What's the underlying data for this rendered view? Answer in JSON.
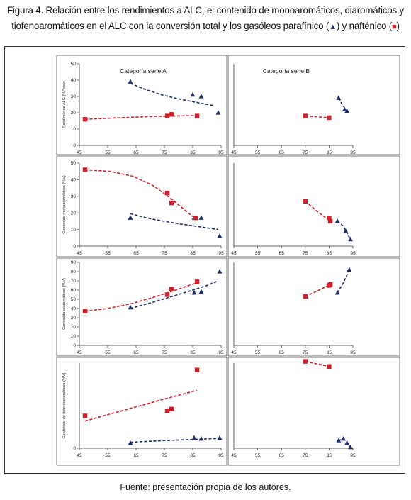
{
  "figure": {
    "title_line1": "Figura 4. Relación entre los rendimientos a ALC, el contenido de monoaromáticos, diaromáticos y",
    "title_line2_a": "tiofenoaromáticos en el ALC con la conversión total y los gasóleos parafínico (",
    "title_line2_b": ") y nafténico (",
    "title_line2_c": ")",
    "source": "Fuente: presentación propia de los autores."
  },
  "colors": {
    "parafinico": "#1f2f6e",
    "naftenico": "#d0202a"
  },
  "chart_data": [
    {
      "type": "scatter",
      "row": 0,
      "panel": "A",
      "title": "Categoría serie A",
      "ylabel": "Rendimiento ALC (%Peso)",
      "xlim": [
        45,
        95
      ],
      "ylim": [
        0,
        50
      ],
      "xticks": [
        45,
        55,
        65,
        75,
        85,
        95
      ],
      "yticks": [
        0,
        10,
        20,
        30,
        40,
        50
      ],
      "series": [
        {
          "marker": "triangle",
          "color": "#1f2f6e",
          "points": [
            [
              63,
              39
            ],
            [
              85,
              31
            ],
            [
              88,
              30
            ],
            [
              94,
              20
            ]
          ],
          "trend": [
            [
              63,
              38
            ],
            [
              68,
              34.5
            ],
            [
              74,
              31
            ],
            [
              80,
              28.5
            ],
            [
              86,
              26.5
            ],
            [
              92,
              24.5
            ]
          ]
        },
        {
          "marker": "square",
          "color": "#d0202a",
          "points": [
            [
              47,
              16
            ],
            [
              76,
              18
            ],
            [
              77.5,
              19
            ],
            [
              86.5,
              18
            ]
          ],
          "trend": [
            [
              47,
              16
            ],
            [
              60,
              17
            ],
            [
              72,
              17.8
            ],
            [
              86.5,
              18.3
            ]
          ]
        }
      ]
    },
    {
      "type": "scatter",
      "row": 0,
      "panel": "B",
      "title": "Categoría serie B",
      "ylabel": "",
      "xlim": [
        45,
        95
      ],
      "ylim": [
        0,
        50
      ],
      "xticks": [
        45,
        55,
        65,
        75,
        85,
        95
      ],
      "yticks": [],
      "series": [
        {
          "marker": "triangle",
          "color": "#1f2f6e",
          "points": [
            [
              89,
              29
            ],
            [
              91.5,
              22
            ],
            [
              92.5,
              21
            ]
          ],
          "trend": [
            [
              89,
              29
            ],
            [
              90.5,
              25
            ],
            [
              92.5,
              21
            ]
          ]
        },
        {
          "marker": "square",
          "color": "#d0202a",
          "points": [
            [
              75,
              18
            ],
            [
              85,
              17
            ]
          ],
          "trend": [
            [
              75,
              18
            ],
            [
              85,
              17
            ]
          ]
        }
      ]
    },
    {
      "type": "scatter",
      "row": 1,
      "panel": "A",
      "title": "",
      "ylabel": "Contenido monoaromáticos (%V)",
      "xlim": [
        45,
        95
      ],
      "ylim": [
        0,
        50
      ],
      "xticks": [
        45,
        55,
        65,
        75,
        85,
        95
      ],
      "yticks": [
        0,
        10,
        20,
        30,
        40,
        50
      ],
      "series": [
        {
          "marker": "triangle",
          "color": "#1f2f6e",
          "points": [
            [
              63,
              17
            ],
            [
              85.5,
              17
            ],
            [
              88,
              17
            ],
            [
              94.5,
              6
            ]
          ],
          "trend": [
            [
              63,
              19.5
            ],
            [
              70,
              16.5
            ],
            [
              78,
              14
            ],
            [
              86,
              12
            ],
            [
              94,
              10
            ]
          ]
        },
        {
          "marker": "square",
          "color": "#d0202a",
          "points": [
            [
              47,
              46
            ],
            [
              76,
              32
            ],
            [
              77.5,
              26
            ],
            [
              86,
              17
            ]
          ],
          "trend": [
            [
              47,
              46
            ],
            [
              56,
              45
            ],
            [
              64,
              42
            ],
            [
              71,
              36.5
            ],
            [
              77,
              29
            ],
            [
              82,
              22
            ],
            [
              86,
              16.5
            ]
          ]
        }
      ]
    },
    {
      "type": "scatter",
      "row": 1,
      "panel": "B",
      "title": "",
      "ylabel": "",
      "xlim": [
        45,
        95
      ],
      "ylim": [
        0,
        50
      ],
      "xticks": [
        45,
        55,
        65,
        75,
        85,
        95
      ],
      "yticks": [],
      "series": [
        {
          "marker": "triangle",
          "color": "#1f2f6e",
          "points": [
            [
              88.5,
              15
            ],
            [
              92,
              9
            ],
            [
              94,
              4
            ]
          ],
          "trend": [
            [
              88.5,
              15
            ],
            [
              91,
              12
            ],
            [
              94,
              4
            ]
          ]
        },
        {
          "marker": "square",
          "color": "#d0202a",
          "points": [
            [
              75,
              27
            ],
            [
              85,
              17
            ],
            [
              85.5,
              15
            ]
          ],
          "trend": [
            [
              75,
              27
            ],
            [
              80,
              21
            ],
            [
              85.5,
              15
            ]
          ]
        }
      ]
    },
    {
      "type": "scatter",
      "row": 2,
      "panel": "A",
      "title": "",
      "ylabel": "Contenido diaromáticos (%V)",
      "xlim": [
        45,
        95
      ],
      "ylim": [
        0,
        90
      ],
      "xticks": [
        45,
        55,
        65,
        75,
        85,
        95
      ],
      "yticks": [
        0,
        10,
        20,
        30,
        40,
        50,
        60,
        70,
        80,
        90
      ],
      "series": [
        {
          "marker": "triangle",
          "color": "#1f2f6e",
          "points": [
            [
              63,
              41
            ],
            [
              76,
              55
            ],
            [
              85.5,
              57
            ],
            [
              88,
              58
            ],
            [
              94.5,
              80
            ]
          ],
          "trend": [
            [
              63,
              40
            ],
            [
              70,
              46
            ],
            [
              77,
              52.5
            ],
            [
              84,
              59
            ],
            [
              90,
              65
            ],
            [
              94,
              70
            ]
          ]
        },
        {
          "marker": "square",
          "color": "#d0202a",
          "points": [
            [
              47,
              37
            ],
            [
              76,
              55
            ],
            [
              77.5,
              61
            ],
            [
              86.5,
              69
            ]
          ],
          "trend": [
            [
              47,
              37
            ],
            [
              55,
              40
            ],
            [
              63,
              45
            ],
            [
              71,
              52
            ],
            [
              79,
              60
            ],
            [
              86.5,
              68
            ]
          ]
        }
      ]
    },
    {
      "type": "scatter",
      "row": 2,
      "panel": "B",
      "title": "",
      "ylabel": "",
      "xlim": [
        45,
        95
      ],
      "ylim": [
        0,
        90
      ],
      "xticks": [
        45,
        55,
        65,
        75,
        85,
        95
      ],
      "yticks": [],
      "series": [
        {
          "marker": "triangle",
          "color": "#1f2f6e",
          "points": [
            [
              88.5,
              57
            ],
            [
              93.5,
              82
            ]
          ],
          "trend": [
            [
              88.5,
              57
            ],
            [
              91,
              68
            ],
            [
              93.5,
              82
            ]
          ]
        },
        {
          "marker": "square",
          "color": "#d0202a",
          "points": [
            [
              75,
              53
            ],
            [
              85,
              65
            ],
            [
              85.5,
              66
            ]
          ],
          "trend": [
            [
              75,
              53
            ],
            [
              80,
              59
            ],
            [
              85.5,
              66
            ]
          ]
        }
      ]
    },
    {
      "type": "scatter",
      "row": 3,
      "panel": "A",
      "title": "",
      "ylabel": "Contenido de tiofenoaromáticos (%V)",
      "xlim": [
        45,
        95
      ],
      "ylim": [
        0,
        5
      ],
      "xticks": [
        45,
        55,
        65,
        75,
        85,
        95
      ],
      "yticks": [
        0
      ],
      "series": [
        {
          "marker": "triangle",
          "color": "#1f2f6e",
          "points": [
            [
              63,
              0.3
            ],
            [
              85.5,
              0.6
            ],
            [
              88,
              0.55
            ],
            [
              94.5,
              0.6
            ]
          ],
          "trend": [
            [
              63,
              0.35
            ],
            [
              75,
              0.45
            ],
            [
              86,
              0.52
            ],
            [
              94.5,
              0.58
            ]
          ]
        },
        {
          "marker": "square",
          "color": "#d0202a",
          "points": [
            [
              47,
              1.9
            ],
            [
              76,
              2.2
            ],
            [
              77.5,
              2.3
            ],
            [
              86.5,
              4.6
            ]
          ],
          "trend": [
            [
              47,
              1.6
            ],
            [
              60,
              2.2
            ],
            [
              73,
              2.8
            ],
            [
              86.5,
              3.4
            ]
          ]
        }
      ]
    },
    {
      "type": "scatter",
      "row": 3,
      "panel": "B",
      "title": "",
      "ylabel": "",
      "xlim": [
        45,
        95
      ],
      "ylim": [
        0,
        5
      ],
      "xticks": [
        45,
        55,
        65,
        75,
        85,
        95
      ],
      "yticks": [],
      "series": [
        {
          "marker": "triangle",
          "color": "#1f2f6e",
          "points": [
            [
              89,
              0.45
            ],
            [
              91,
              0.55
            ],
            [
              92.5,
              0.3
            ],
            [
              94,
              0.05
            ]
          ],
          "trend": [
            [
              89,
              0.45
            ],
            [
              91,
              0.55
            ],
            [
              92.5,
              0.3
            ],
            [
              94,
              0.05
            ]
          ]
        },
        {
          "marker": "square",
          "color": "#d0202a",
          "points": [
            [
              75,
              5.1
            ],
            [
              85,
              4.8
            ]
          ],
          "trend": [
            [
              75,
              5.1
            ],
            [
              85,
              4.8
            ]
          ]
        }
      ]
    }
  ]
}
